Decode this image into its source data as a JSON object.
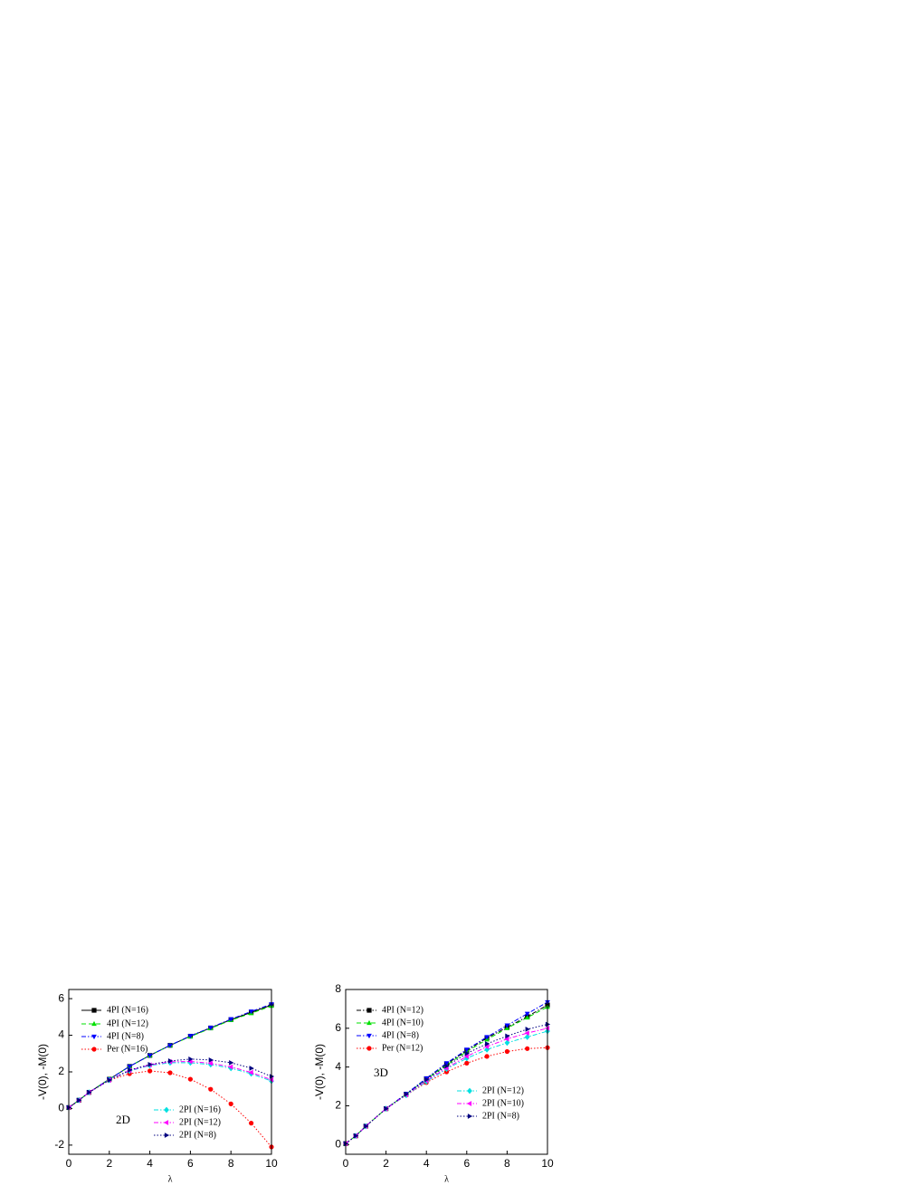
{
  "chart_data": [
    {
      "type": "line",
      "annotation": "2D",
      "x_label": "λ",
      "y_label": "-V(0), -M(0)",
      "x": [
        0,
        0.5,
        1,
        2,
        3,
        4,
        5,
        6,
        7,
        8,
        9,
        10
      ],
      "xlim": [
        0,
        10
      ],
      "xticks": [
        0,
        2,
        4,
        6,
        8,
        10
      ],
      "ylim": [
        -2.5,
        6.5
      ],
      "yticks": [
        -2,
        0,
        2,
        4,
        6
      ],
      "series": [
        {
          "name": "4PI (N=16)",
          "color": "#000000",
          "marker": "square",
          "linestyle": "solid",
          "values": [
            0.05,
            0.45,
            0.88,
            1.6,
            2.3,
            2.9,
            3.45,
            3.95,
            4.4,
            4.85,
            5.25,
            5.65
          ]
        },
        {
          "name": "4PI (N=12)",
          "color": "#00e000",
          "marker": "triangle-up",
          "linestyle": "dash",
          "values": [
            0.05,
            0.45,
            0.88,
            1.6,
            2.3,
            2.9,
            3.45,
            3.93,
            4.38,
            4.82,
            5.2,
            5.6
          ]
        },
        {
          "name": "4PI (N=8)",
          "color": "#0000ff",
          "marker": "triangle-down",
          "linestyle": "dashdot",
          "values": [
            0.05,
            0.45,
            0.88,
            1.6,
            2.3,
            2.9,
            3.45,
            3.97,
            4.42,
            4.88,
            5.3,
            5.7
          ]
        },
        {
          "name": "Per (N=16)",
          "color": "#ff0000",
          "marker": "circle",
          "linestyle": "dot",
          "values": [
            0.05,
            0.45,
            0.88,
            1.55,
            1.9,
            2.05,
            1.95,
            1.6,
            1.05,
            0.25,
            -0.8,
            -2.1
          ]
        },
        {
          "name": "2PI (N=16)",
          "color": "#00e0e0",
          "marker": "diamond",
          "linestyle": "dashdot",
          "values": [
            0.05,
            0.45,
            0.88,
            1.55,
            2.05,
            2.35,
            2.5,
            2.5,
            2.4,
            2.2,
            1.9,
            1.5
          ]
        },
        {
          "name": "2PI (N=12)",
          "color": "#ff00ff",
          "marker": "triangle-left",
          "linestyle": "dashdot",
          "values": [
            0.05,
            0.45,
            0.88,
            1.55,
            2.08,
            2.38,
            2.55,
            2.57,
            2.47,
            2.27,
            1.97,
            1.57
          ]
        },
        {
          "name": "2PI (N=8)",
          "color": "#000080",
          "marker": "triangle-right",
          "linestyle": "dot",
          "values": [
            0.05,
            0.45,
            0.88,
            1.55,
            2.1,
            2.4,
            2.6,
            2.7,
            2.65,
            2.5,
            2.2,
            1.75
          ]
        }
      ]
    },
    {
      "type": "line",
      "annotation": "3D",
      "x_label": "λ",
      "y_label": "-V(0), -M(0)",
      "x": [
        0,
        0.5,
        1,
        2,
        3,
        4,
        5,
        6,
        7,
        8,
        9,
        10
      ],
      "xlim": [
        0,
        10
      ],
      "xticks": [
        0,
        2,
        4,
        6,
        8,
        10
      ],
      "ylim": [
        -0.5,
        8
      ],
      "yticks": [
        0,
        2,
        4,
        6,
        8
      ],
      "series": [
        {
          "name": "4PI (N=12)",
          "color": "#000000",
          "marker": "square",
          "linestyle": "dashdot",
          "values": [
            0.05,
            0.45,
            0.95,
            1.85,
            2.6,
            3.4,
            4.15,
            4.85,
            5.5,
            6.05,
            6.6,
            7.2
          ]
        },
        {
          "name": "4PI (N=10)",
          "color": "#00e000",
          "marker": "triangle-up",
          "linestyle": "dash",
          "values": [
            0.05,
            0.45,
            0.95,
            1.85,
            2.6,
            3.38,
            4.1,
            4.8,
            5.42,
            6.0,
            6.55,
            7.1
          ]
        },
        {
          "name": "4PI (N=8)",
          "color": "#0000ff",
          "marker": "triangle-down",
          "linestyle": "dashdot",
          "values": [
            0.05,
            0.45,
            0.95,
            1.85,
            2.62,
            3.42,
            4.2,
            4.9,
            5.55,
            6.15,
            6.75,
            7.35
          ]
        },
        {
          "name": "Per (N=12)",
          "color": "#ff0000",
          "marker": "circle",
          "linestyle": "dot",
          "values": [
            0.05,
            0.45,
            0.95,
            1.85,
            2.55,
            3.2,
            3.75,
            4.2,
            4.55,
            4.8,
            4.95,
            5.0
          ]
        },
        {
          "name": "2PI (N=12)",
          "color": "#00e0e0",
          "marker": "diamond",
          "linestyle": "dashdot",
          "values": [
            0.05,
            0.45,
            0.95,
            1.85,
            2.55,
            3.25,
            3.9,
            4.45,
            4.9,
            5.25,
            5.55,
            5.85
          ]
        },
        {
          "name": "2PI (N=10)",
          "color": "#ff00ff",
          "marker": "triangle-left",
          "linestyle": "dashdot",
          "values": [
            0.05,
            0.45,
            0.95,
            1.85,
            2.57,
            3.3,
            3.95,
            4.55,
            5.05,
            5.45,
            5.75,
            6.0
          ]
        },
        {
          "name": "2PI (N=8)",
          "color": "#000080",
          "marker": "triangle-right",
          "linestyle": "dot",
          "values": [
            0.05,
            0.45,
            0.95,
            1.85,
            2.6,
            3.35,
            4.05,
            4.7,
            5.2,
            5.6,
            5.95,
            6.2
          ]
        }
      ]
    }
  ]
}
